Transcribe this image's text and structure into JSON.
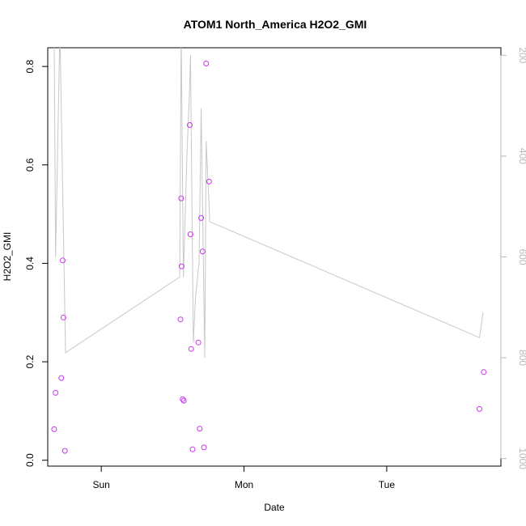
{
  "chart_data": {
    "type": "scatter",
    "title": "ATOM1 North_America H2O2_GMI",
    "xlabel": "Date",
    "ylabel": "H2O2_GMI",
    "x_ticks": [
      {
        "label": "Sun",
        "value": 0.0
      },
      {
        "label": "Mon",
        "value": 1.0
      },
      {
        "label": "Tue",
        "value": 2.0
      }
    ],
    "xlim": [
      -0.375,
      2.8
    ],
    "ylim": [
      -0.012,
      0.838
    ],
    "y_ticks": [
      0.0,
      0.2,
      0.4,
      0.6,
      0.8
    ],
    "y_tick_labels": [
      "0.0",
      "0.2",
      "0.4",
      "0.6",
      "0.8"
    ],
    "y2_ticks": [
      200,
      400,
      600,
      800,
      1000
    ],
    "y2_tick_labels": [
      "200",
      "400",
      "600",
      "800",
      "1000"
    ],
    "y2lim": [
      1015,
      185
    ],
    "y2_reversed": true,
    "grid": false,
    "legend": "none",
    "colors": {
      "points": "#cc33ee",
      "line": "#c8c8c8",
      "right_axis": "#b8b8b8"
    },
    "points": [
      {
        "x": -0.33,
        "y": 0.063
      },
      {
        "x": -0.32,
        "y": 0.137
      },
      {
        "x": -0.28,
        "y": 0.167
      },
      {
        "x": -0.27,
        "y": 0.406
      },
      {
        "x": -0.265,
        "y": 0.29
      },
      {
        "x": -0.255,
        "y": 0.019
      },
      {
        "x": 0.555,
        "y": 0.286
      },
      {
        "x": 0.56,
        "y": 0.532
      },
      {
        "x": 0.563,
        "y": 0.394
      },
      {
        "x": 0.57,
        "y": 0.124
      },
      {
        "x": 0.578,
        "y": 0.121
      },
      {
        "x": 0.62,
        "y": 0.681
      },
      {
        "x": 0.625,
        "y": 0.459
      },
      {
        "x": 0.63,
        "y": 0.226
      },
      {
        "x": 0.64,
        "y": 0.022
      },
      {
        "x": 0.68,
        "y": 0.239
      },
      {
        "x": 0.69,
        "y": 0.064
      },
      {
        "x": 0.7,
        "y": 0.492
      },
      {
        "x": 0.71,
        "y": 0.424
      },
      {
        "x": 0.72,
        "y": 0.026
      },
      {
        "x": 0.735,
        "y": 0.806
      },
      {
        "x": 0.755,
        "y": 0.566
      },
      {
        "x": 2.65,
        "y": 0.104
      },
      {
        "x": 2.68,
        "y": 0.179
      }
    ],
    "pressure_line": [
      {
        "x": -0.33,
        "y2": 150
      },
      {
        "x": -0.32,
        "y2": 600
      },
      {
        "x": -0.29,
        "y2": 150
      },
      {
        "x": -0.25,
        "y2": 790
      },
      {
        "x": 0.55,
        "y2": 640
      },
      {
        "x": 0.56,
        "y2": 150
      },
      {
        "x": 0.575,
        "y2": 640
      },
      {
        "x": 0.6,
        "y2": 400
      },
      {
        "x": 0.617,
        "y2": 280
      },
      {
        "x": 0.625,
        "y2": 200
      },
      {
        "x": 0.645,
        "y2": 770
      },
      {
        "x": 0.66,
        "y2": 680
      },
      {
        "x": 0.685,
        "y2": 610
      },
      {
        "x": 0.7,
        "y2": 305
      },
      {
        "x": 0.725,
        "y2": 800
      },
      {
        "x": 0.735,
        "y2": 370
      },
      {
        "x": 0.76,
        "y2": 530
      },
      {
        "x": 2.65,
        "y2": 760
      },
      {
        "x": 2.675,
        "y2": 710
      }
    ]
  }
}
